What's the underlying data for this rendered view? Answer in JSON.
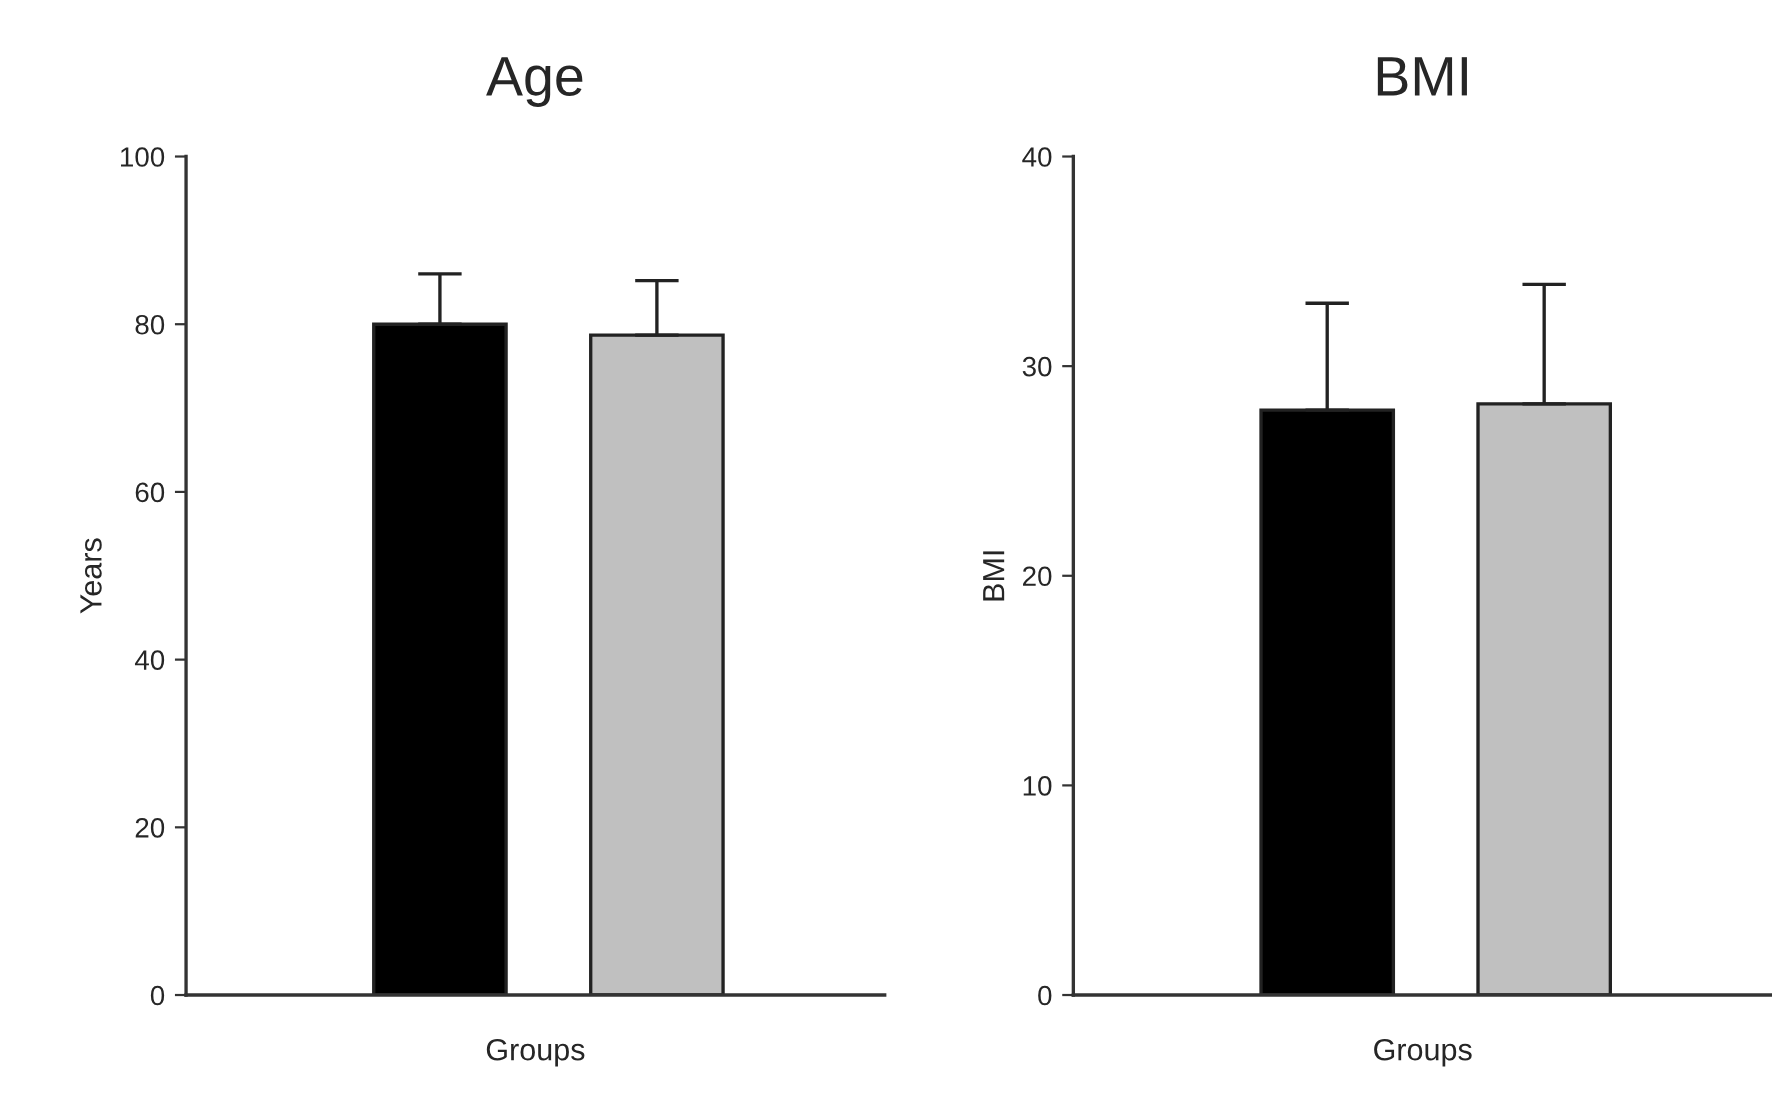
{
  "chart_data": [
    {
      "type": "bar",
      "title": "Age",
      "xlabel": "Groups",
      "ylabel": "Years",
      "categories": [
        null,
        null
      ],
      "values": [
        80,
        78.7
      ],
      "colors": [
        "#000000",
        "#c0c0c0"
      ],
      "errors": [
        [
          80,
          86
        ],
        [
          78.7,
          85.2
        ]
      ],
      "ylim": [
        0,
        100
      ],
      "yticks": [
        0,
        20,
        40,
        60,
        80,
        100
      ],
      "grid": false,
      "legend": false
    },
    {
      "type": "bar",
      "title": "BMI",
      "xlabel": "Groups",
      "ylabel": "BMI",
      "categories": [
        null,
        null
      ],
      "values": [
        27.9,
        28.2
      ],
      "colors": [
        "#000000",
        "#c0c0c0"
      ],
      "errors": [
        [
          27.9,
          33.0
        ],
        [
          28.2,
          33.9
        ]
      ],
      "ylim": [
        0,
        40
      ],
      "yticks": [
        0,
        10,
        20,
        30,
        40
      ],
      "grid": false,
      "legend": false
    }
  ]
}
